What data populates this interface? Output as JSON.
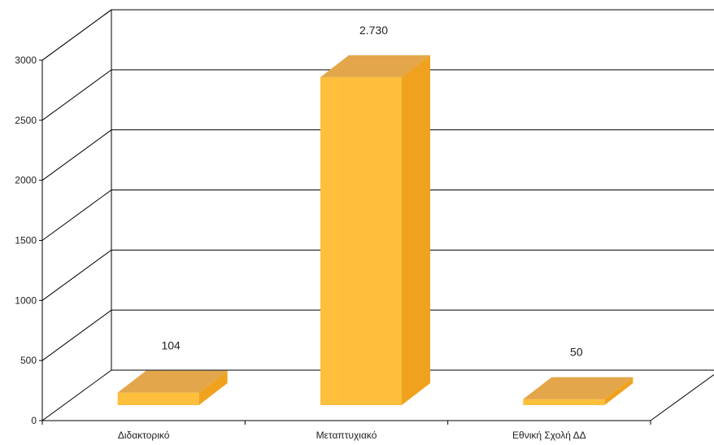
{
  "chart_data": {
    "type": "bar",
    "categories": [
      "Διδακτορικό",
      "Μεταπτυχιακό",
      "Εθνική Σχολή ΔΔ"
    ],
    "values": [
      104,
      2730,
      50
    ],
    "value_labels": [
      "104",
      "2.730",
      "50"
    ],
    "ylim": [
      0,
      3000
    ],
    "yticks": [
      0,
      500,
      1000,
      1500,
      2000,
      2500,
      3000
    ],
    "ytick_labels": [
      "0",
      "500",
      "1000",
      "1500",
      "2000",
      "2500",
      "3000"
    ],
    "grid": true,
    "three_d": true,
    "colors": {
      "bar_front": "#FDBF3C",
      "bar_top": "#E3A64A",
      "bar_side": "#F0A21F",
      "grid": "#000000",
      "text": "#222222"
    }
  }
}
